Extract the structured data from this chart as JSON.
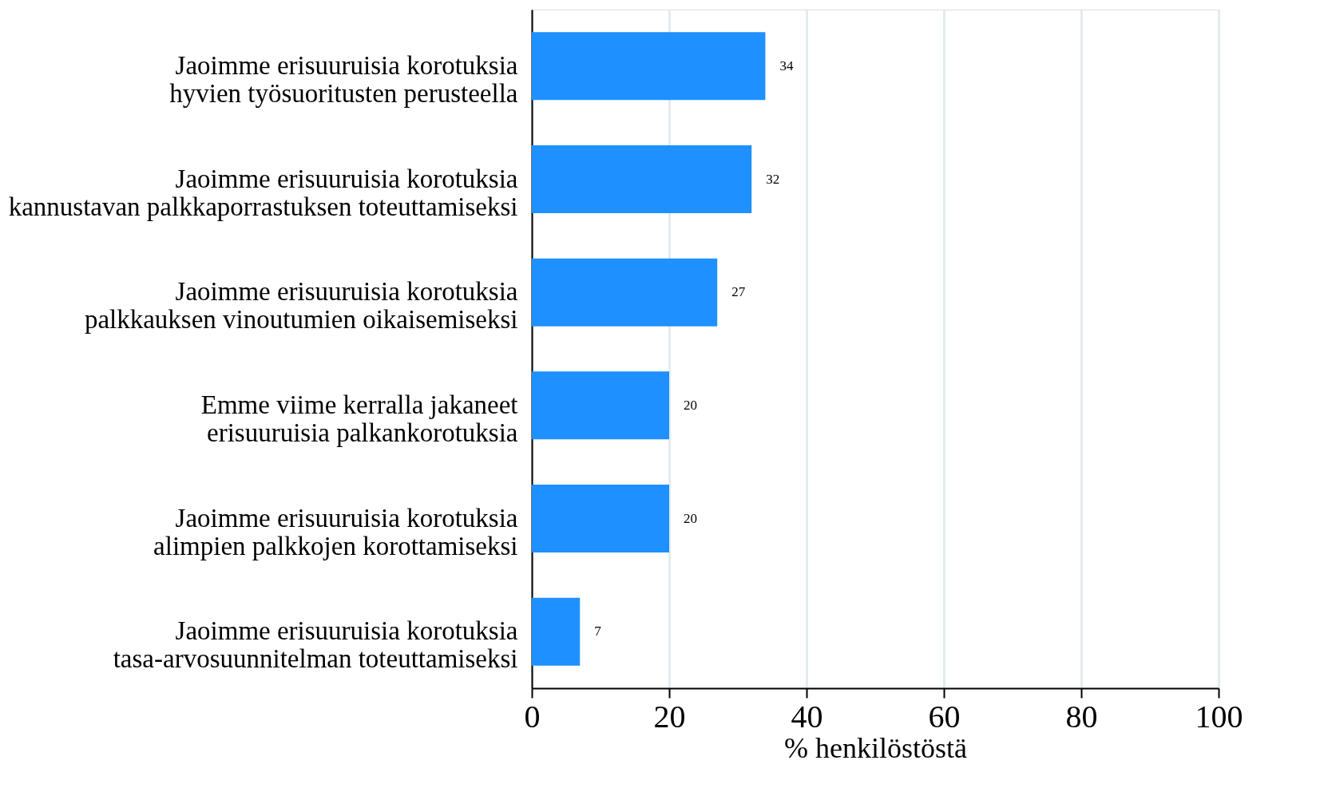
{
  "chart_data": {
    "type": "bar",
    "orientation": "horizontal",
    "xlabel": "% henkilöstöstä",
    "categories": [
      "Jaoimme erisuuruisia korotuksia\nhyvien työsuoritusten perusteella",
      "Jaoimme erisuuruisia korotuksia\nkannustavan palkkaporrastuksen toteuttamiseksi",
      "Jaoimme erisuuruisia korotuksia\npalkkauksen vinoutumien oikaisemiseksi",
      "Emme viime kerralla jakaneet\nerisuuruisia palkankorotuksia",
      "Jaoimme erisuuruisia korotuksia\nalimpien palkkojen korottamiseksi",
      "Jaoimme erisuuruisia korotuksia\ntasa-arvosuunnitelman toteuttamiseksi"
    ],
    "values": [
      34,
      32,
      27,
      20,
      20,
      7
    ],
    "color": "#1e90ff",
    "xlim": [
      0,
      100
    ],
    "xticks": [
      0,
      20,
      40,
      60,
      80,
      100
    ],
    "grid": "x",
    "data_labels": true
  }
}
